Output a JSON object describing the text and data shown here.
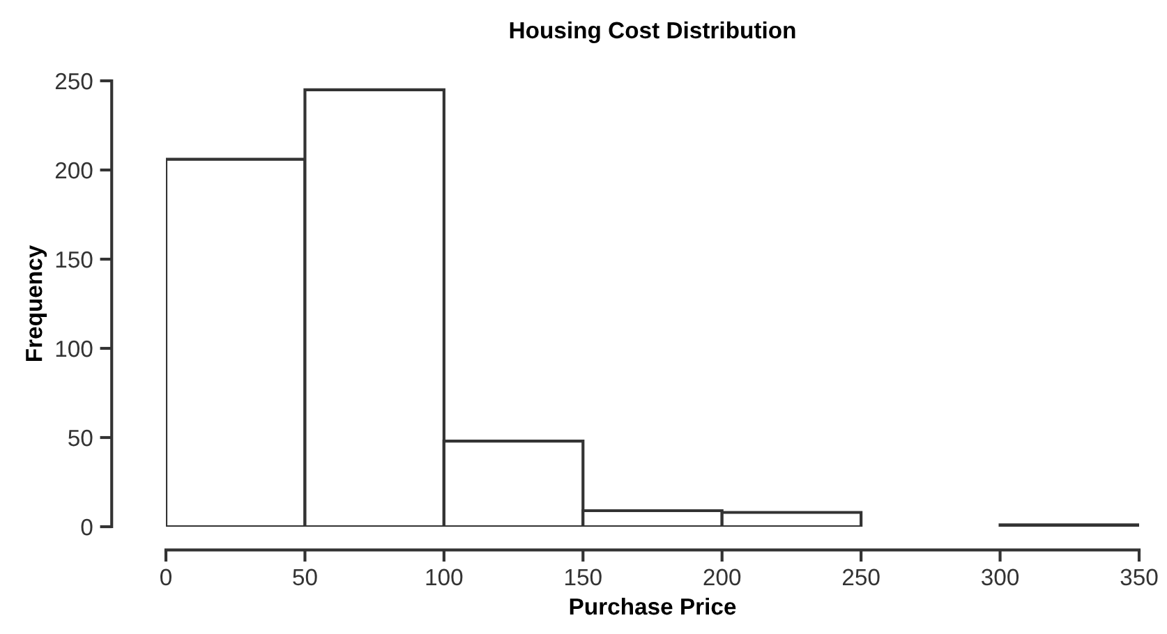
{
  "chart_data": {
    "type": "histogram",
    "title": "Housing Cost Distribution",
    "xlabel": "Purchase Price",
    "ylabel": "Frequency",
    "bins": [
      0,
      50,
      100,
      150,
      200,
      250,
      300,
      350
    ],
    "values": [
      206,
      245,
      48,
      9,
      8,
      0,
      1
    ],
    "color": "#ffffff",
    "xlim": [
      0,
      350
    ],
    "ylim": [
      0,
      250
    ],
    "xticks": [
      0,
      50,
      100,
      150,
      200,
      250,
      300,
      350
    ],
    "yticks": [
      0,
      50,
      100,
      150,
      200,
      250
    ],
    "grid": false,
    "legend": false
  }
}
